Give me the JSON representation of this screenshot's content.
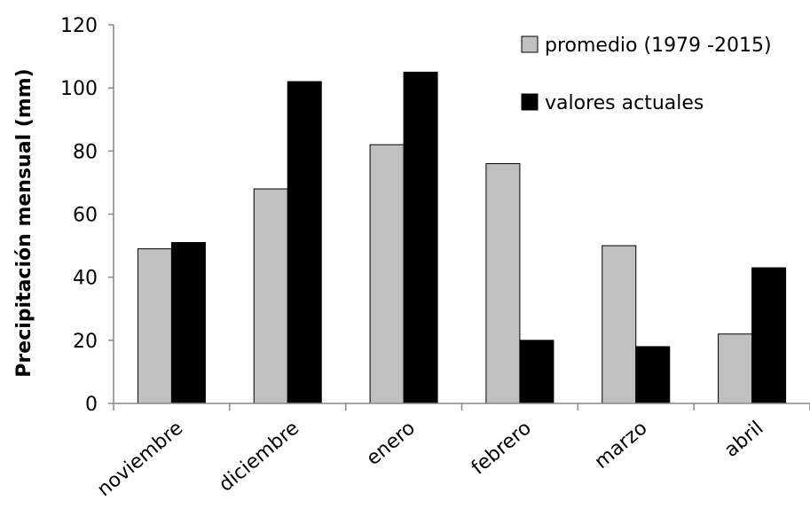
{
  "chart_data": {
    "type": "bar",
    "title": "",
    "xlabel": "",
    "ylabel": "Precipitación mensual (mm)",
    "categories": [
      "noviembre",
      "diciembre",
      "enero",
      "febrero",
      "marzo",
      "abril"
    ],
    "series": [
      {
        "name": "promedio (1979 -2015)",
        "values": [
          49,
          68,
          82,
          76,
          50,
          22
        ],
        "color": "#c0c0c0"
      },
      {
        "name": "valores actuales",
        "values": [
          51,
          102,
          105,
          20,
          18,
          43
        ],
        "color": "#000000"
      }
    ],
    "ylim": [
      0,
      120
    ],
    "yticks": [
      0,
      20,
      40,
      60,
      80,
      100,
      120
    ],
    "grid": false,
    "legend_position": "top-right"
  }
}
